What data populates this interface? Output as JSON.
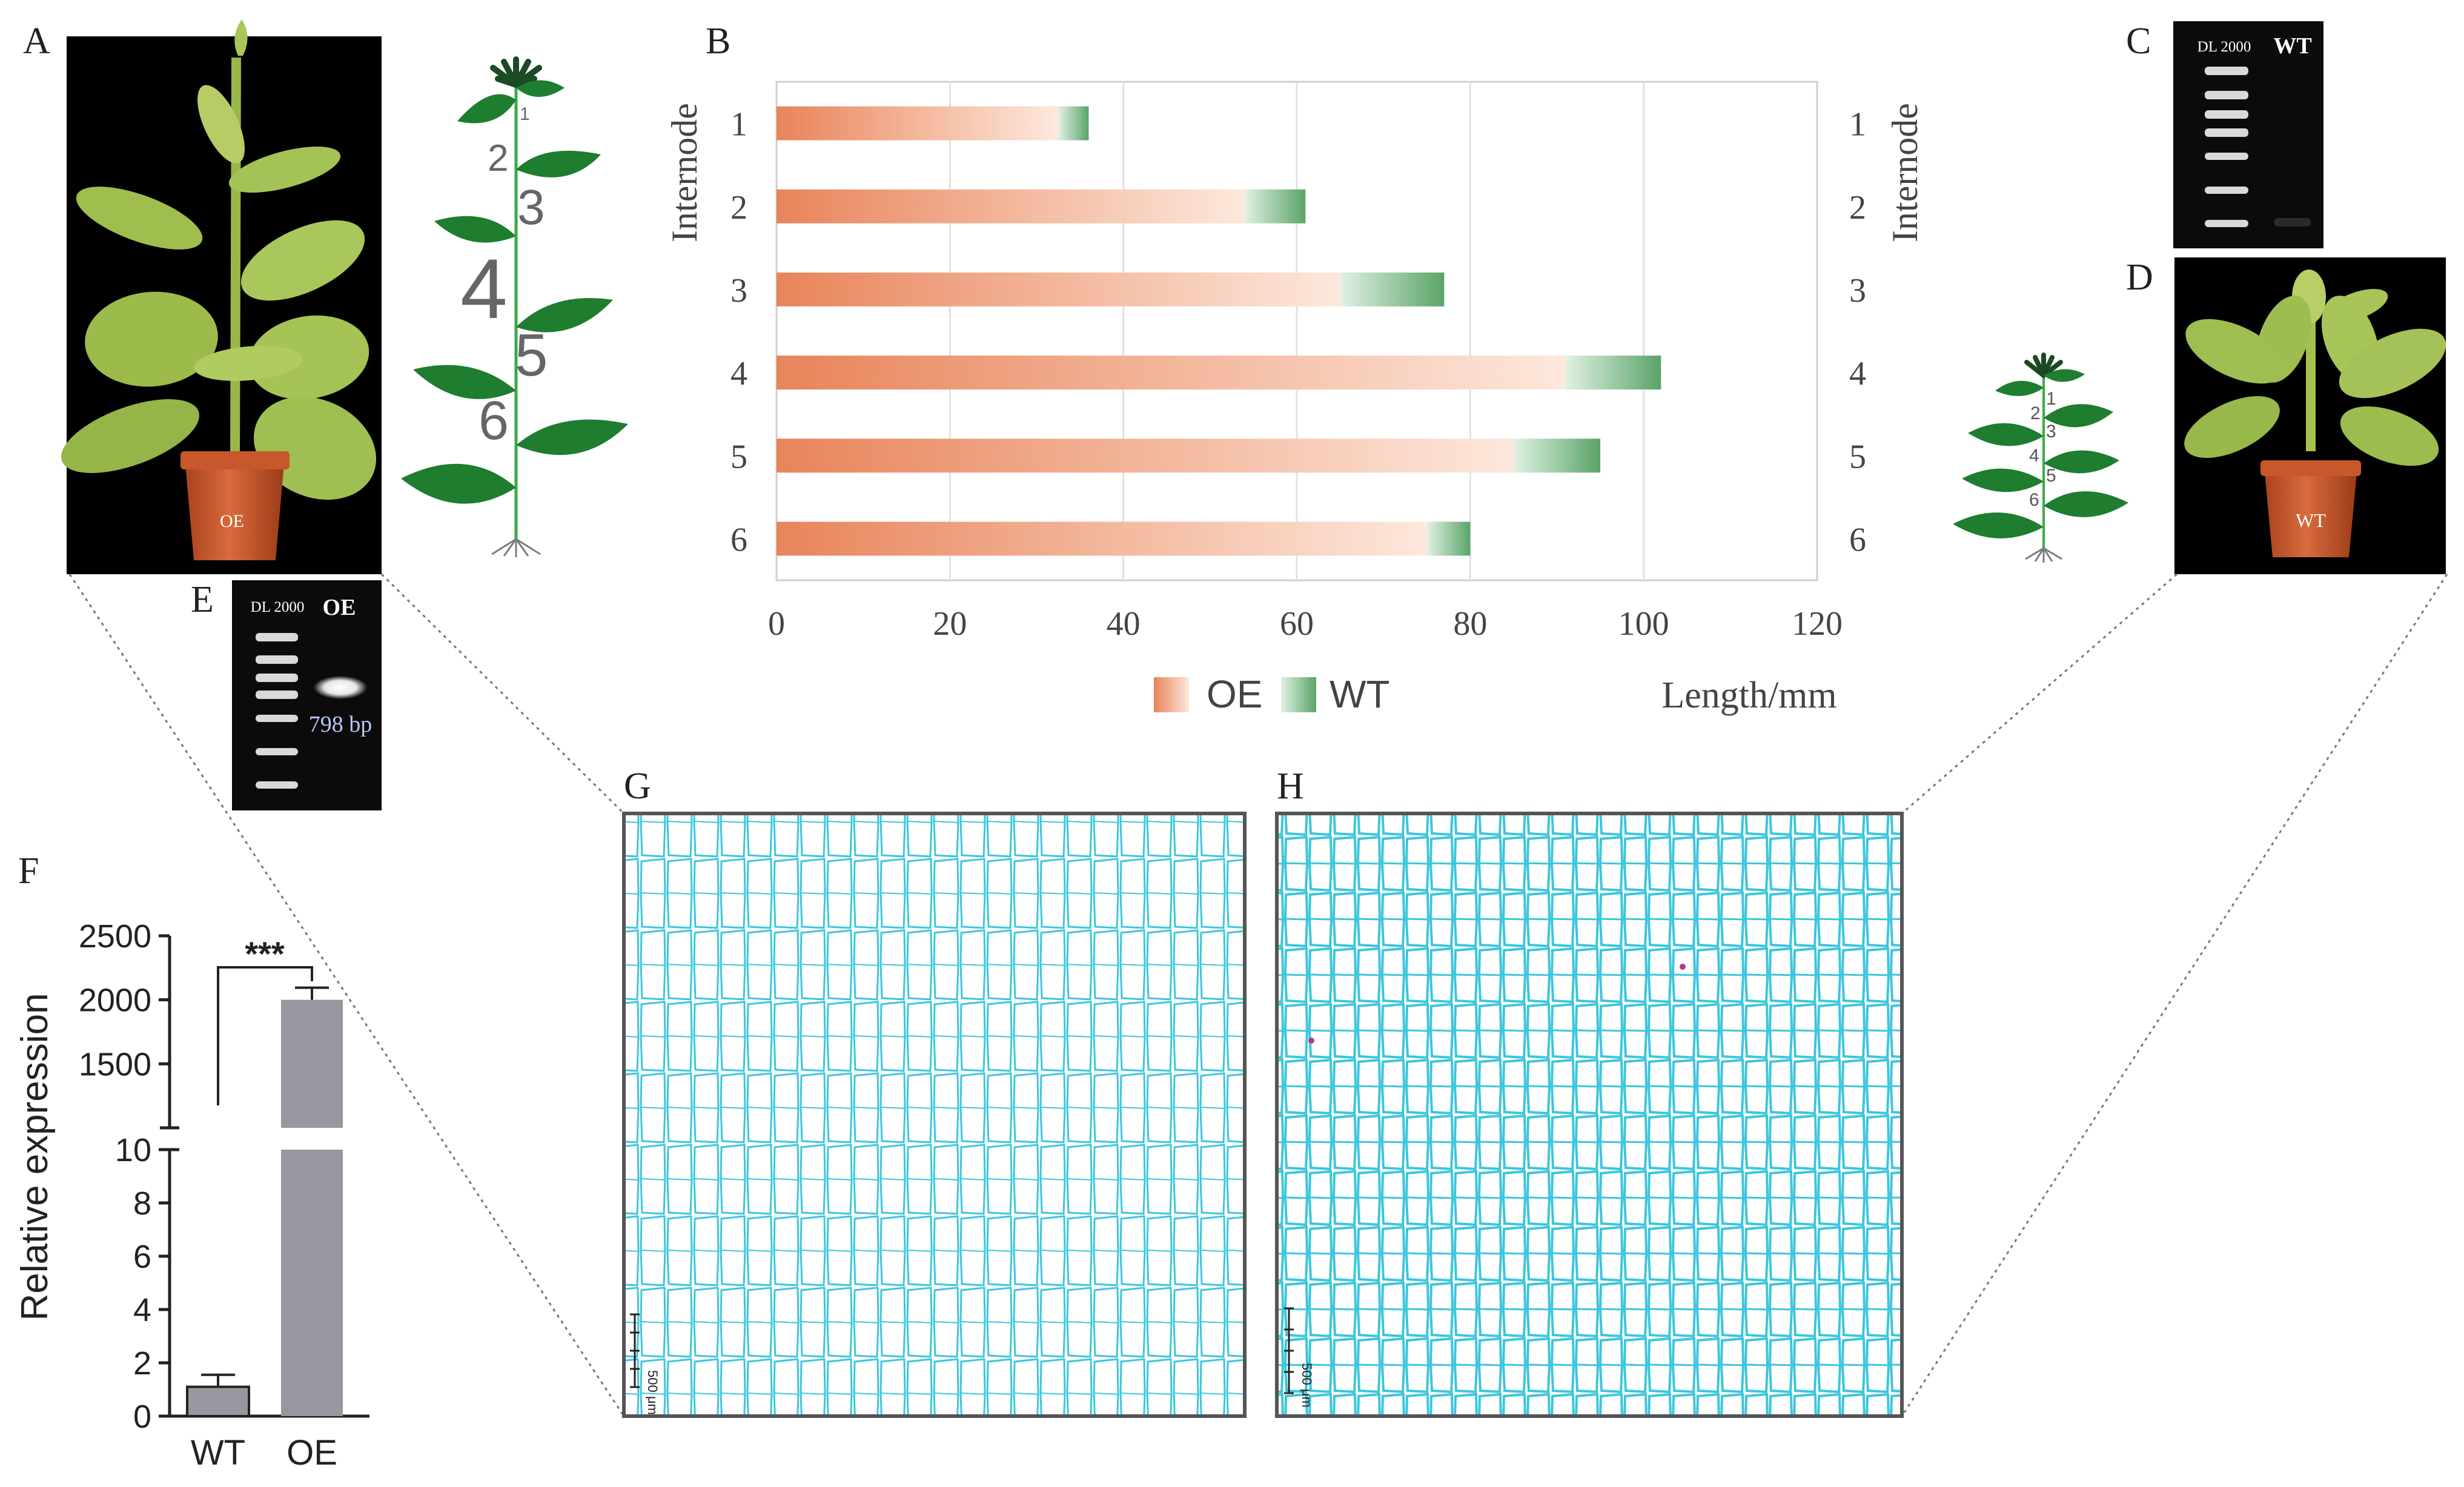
{
  "panel_labels": {
    "a": "A",
    "b": "B",
    "c": "C",
    "d": "D",
    "e": "E",
    "f": "F",
    "g": "G",
    "h": "H"
  },
  "photo_oe": {
    "pot_label": "OE"
  },
  "photo_wt": {
    "pot_label": "WT"
  },
  "schematic_oe": {
    "internodes": [
      "1",
      "2",
      "3",
      "4",
      "5",
      "6"
    ]
  },
  "schematic_wt": {
    "internodes": [
      "1",
      "2",
      "3",
      "4",
      "5",
      "6"
    ]
  },
  "gel_c": {
    "marker_label": "DL 2000",
    "lane_label": "WT"
  },
  "gel_e": {
    "marker_label": "DL 2000",
    "lane_label": "OE",
    "band_label": "798 bp"
  },
  "micrograph_g": {
    "scale_label": "500 μm"
  },
  "micrograph_h": {
    "scale_label": "500 μm"
  },
  "colors": {
    "oe_dark": "#e8845a",
    "oe_light": "#fde8dc",
    "wt_dark": "#5aa468",
    "wt_light": "#e1f1e3",
    "expression_bar": "#98969e",
    "cell_wall": "#3cc6dc",
    "background": "#ffffff"
  },
  "chart_data": [
    {
      "type": "bar",
      "orientation": "horizontal",
      "stacked": true,
      "title": "",
      "ylabel_left": "Internode",
      "ylabel_right": "Internode",
      "xlabel": "Length/mm",
      "categories": [
        "1",
        "2",
        "3",
        "4",
        "5",
        "6"
      ],
      "series": [
        {
          "name": "OE",
          "values": [
            32.5,
            54,
            65,
            91,
            85,
            75
          ]
        },
        {
          "name": "WT",
          "values": [
            3.5,
            7,
            12,
            11,
            10,
            5
          ]
        }
      ],
      "xlim": [
        0,
        120
      ],
      "xticks": [
        "0",
        "20",
        "40",
        "60",
        "80",
        "100",
        "120"
      ],
      "grid": true,
      "legend": {
        "position": "bottom",
        "entries": [
          "OE",
          "WT"
        ]
      }
    },
    {
      "type": "bar",
      "title": "",
      "ylabel": "Relative expression",
      "categories": [
        "WT",
        "OE"
      ],
      "values": [
        1.1,
        2000
      ],
      "error": [
        0.45,
        95
      ],
      "axis_break": {
        "lower": [
          0,
          10
        ],
        "upper": [
          1000,
          2500
        ]
      },
      "yticks_lower": [
        "0",
        "2",
        "4",
        "6",
        "8",
        "10"
      ],
      "yticks_upper": [
        "1500",
        "2000",
        "2500"
      ],
      "significance": "***"
    }
  ]
}
